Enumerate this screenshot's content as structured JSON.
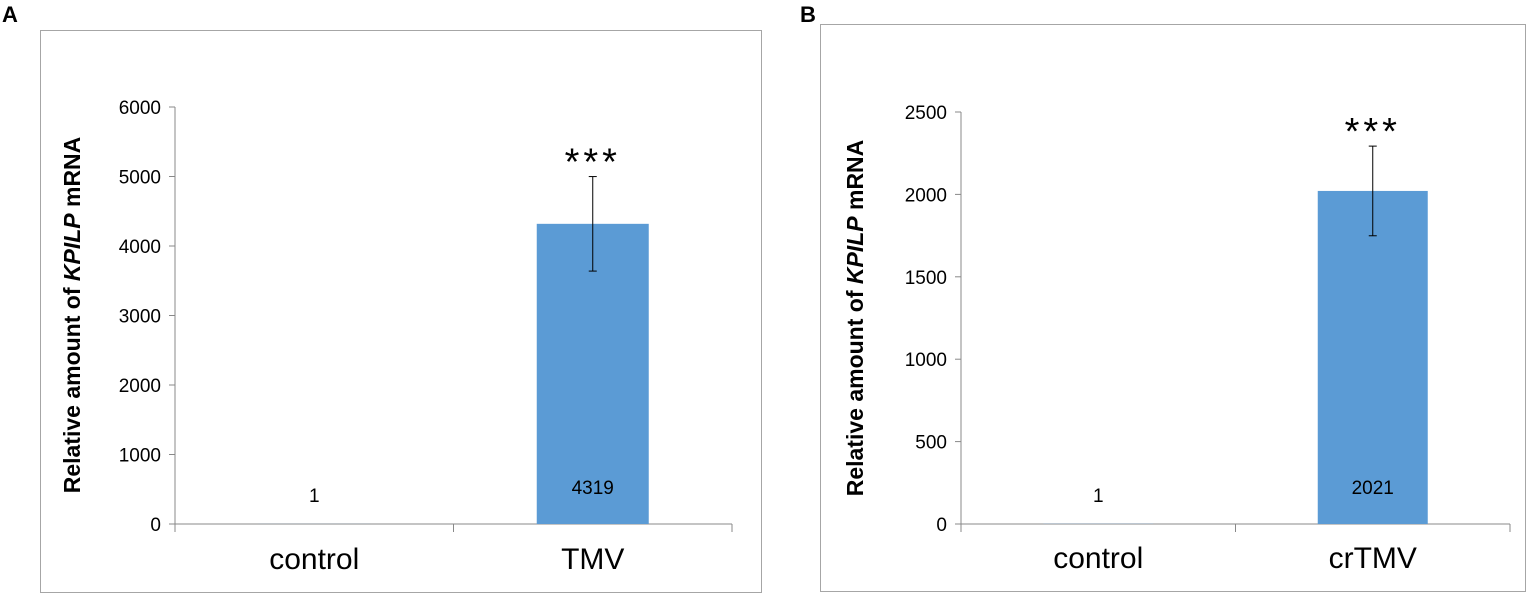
{
  "chart_data": [
    {
      "panel": "A",
      "type": "bar",
      "categories": [
        "control",
        "TMV"
      ],
      "values": [
        1,
        4319
      ],
      "value_labels": [
        "1",
        "4319"
      ],
      "error": [
        null,
        680
      ],
      "significance": [
        null,
        "***"
      ],
      "ylabel_parts": [
        "Relative amount of ",
        "KPILP",
        " mRNA"
      ],
      "ylim": [
        0,
        6000
      ],
      "yticks": [
        0,
        1000,
        2000,
        3000,
        4000,
        5000,
        6000
      ],
      "xlabel": "",
      "bar_color": "#5b9bd5",
      "grid": false
    },
    {
      "panel": "B",
      "type": "bar",
      "categories": [
        "control",
        "crTMV"
      ],
      "values": [
        1,
        2021
      ],
      "value_labels": [
        "1",
        "2021"
      ],
      "error": [
        null,
        272
      ],
      "significance": [
        null,
        "***"
      ],
      "ylabel_parts": [
        "Relative amount of ",
        "KPILP",
        " mRNA"
      ],
      "ylim": [
        0,
        2500
      ],
      "yticks": [
        0,
        500,
        1000,
        1500,
        2000,
        2500
      ],
      "xlabel": "",
      "bar_color": "#5b9bd5",
      "grid": false
    }
  ]
}
